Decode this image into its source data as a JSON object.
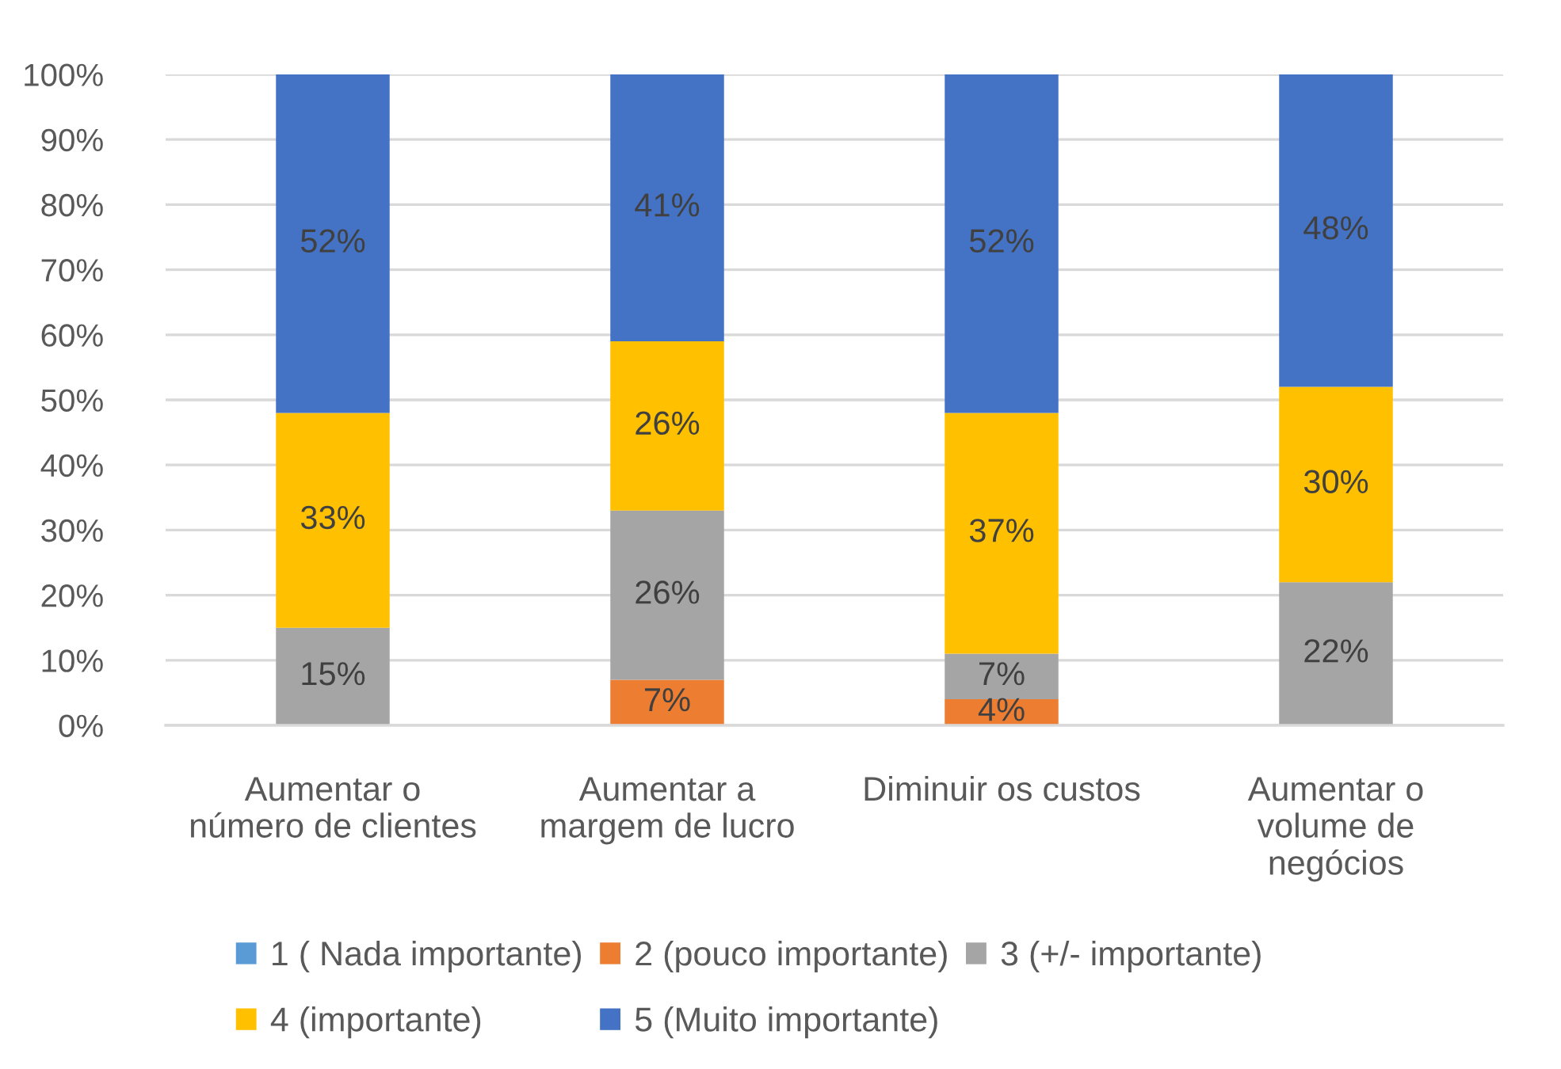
{
  "chart_data": {
    "type": "bar",
    "stacked": true,
    "categories": [
      "Aumentar o\nnúmero de clientes",
      "Aumentar a\nmargem de lucro",
      "Diminuir os custos",
      "Aumentar o\nvolume de\nnegócios"
    ],
    "series": [
      {
        "name": "1 ( Nada importante)",
        "color": "#5b9bd5",
        "values": [
          0,
          0,
          0,
          0
        ],
        "value_labels": [
          null,
          null,
          null,
          null
        ]
      },
      {
        "name": "2 (pouco importante)",
        "color": "#ed7d31",
        "values": [
          0,
          7,
          4,
          0
        ],
        "value_labels": [
          null,
          "7%",
          "4%",
          null
        ]
      },
      {
        "name": "3 (+/- importante)",
        "color": "#a5a5a5",
        "values": [
          15,
          26,
          7,
          22
        ],
        "value_labels": [
          "15%",
          "26%",
          "7%",
          "22%"
        ]
      },
      {
        "name": "4 (importante)",
        "color": "#ffc000",
        "values": [
          33,
          26,
          37,
          30
        ],
        "value_labels": [
          "33%",
          "26%",
          "37%",
          "30%"
        ]
      },
      {
        "name": "5 (Muito importante)",
        "color": "#4472c4",
        "values": [
          52,
          41,
          52,
          48
        ],
        "value_labels": [
          "52%",
          "41%",
          "52%",
          "48%"
        ]
      }
    ],
    "ylim": [
      0,
      100
    ],
    "yticks": [
      {
        "value": 0,
        "label": "0%"
      },
      {
        "value": 10,
        "label": "10%"
      },
      {
        "value": 20,
        "label": "20%"
      },
      {
        "value": 30,
        "label": "30%"
      },
      {
        "value": 40,
        "label": "40%"
      },
      {
        "value": 50,
        "label": "50%"
      },
      {
        "value": 60,
        "label": "60%"
      },
      {
        "value": 70,
        "label": "70%"
      },
      {
        "value": 80,
        "label": "80%"
      },
      {
        "value": 90,
        "label": "90%"
      },
      {
        "value": 100,
        "label": "100%"
      }
    ],
    "grid": "y",
    "legend": "bottom"
  }
}
